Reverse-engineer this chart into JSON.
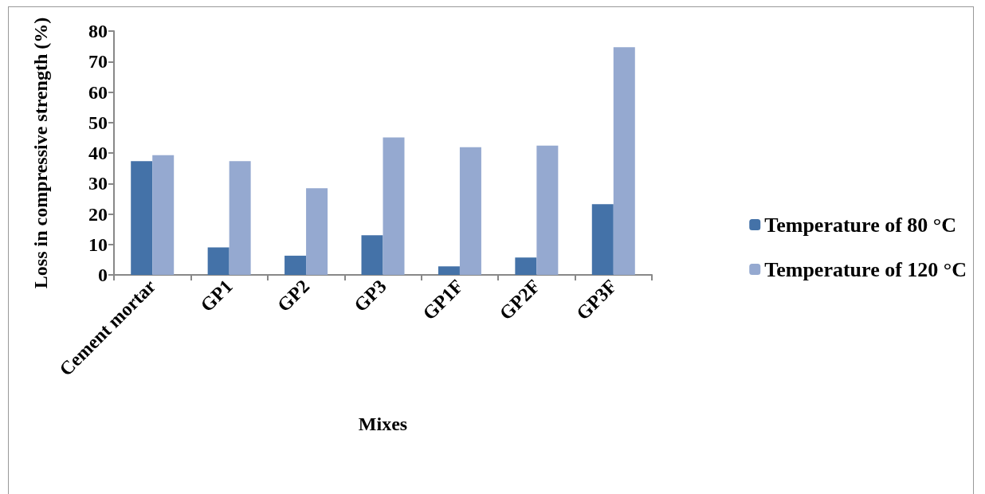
{
  "chart_data": {
    "type": "bar",
    "xlabel": "Mixes",
    "ylabel": "Loss in compressive strength (%)",
    "categories": [
      "Cement mortar",
      "GP1",
      "GP2",
      "GP3",
      "GP1F",
      "GP2F",
      "GP3F"
    ],
    "series": [
      {
        "name": "Temperature of 80 °C",
        "color": "#4472a8",
        "values": [
          37.3,
          9.0,
          6.3,
          13.0,
          2.8,
          5.7,
          23.2
        ]
      },
      {
        "name": "Temperature of 120 °C",
        "color": "#95a9d0",
        "values": [
          39.3,
          37.3,
          28.4,
          45.1,
          41.9,
          42.4,
          74.7
        ]
      }
    ],
    "ylim": [
      0,
      80
    ],
    "yticks": [
      0,
      10,
      20,
      30,
      40,
      50,
      60,
      70,
      80
    ],
    "grid": false,
    "legend": "right"
  }
}
